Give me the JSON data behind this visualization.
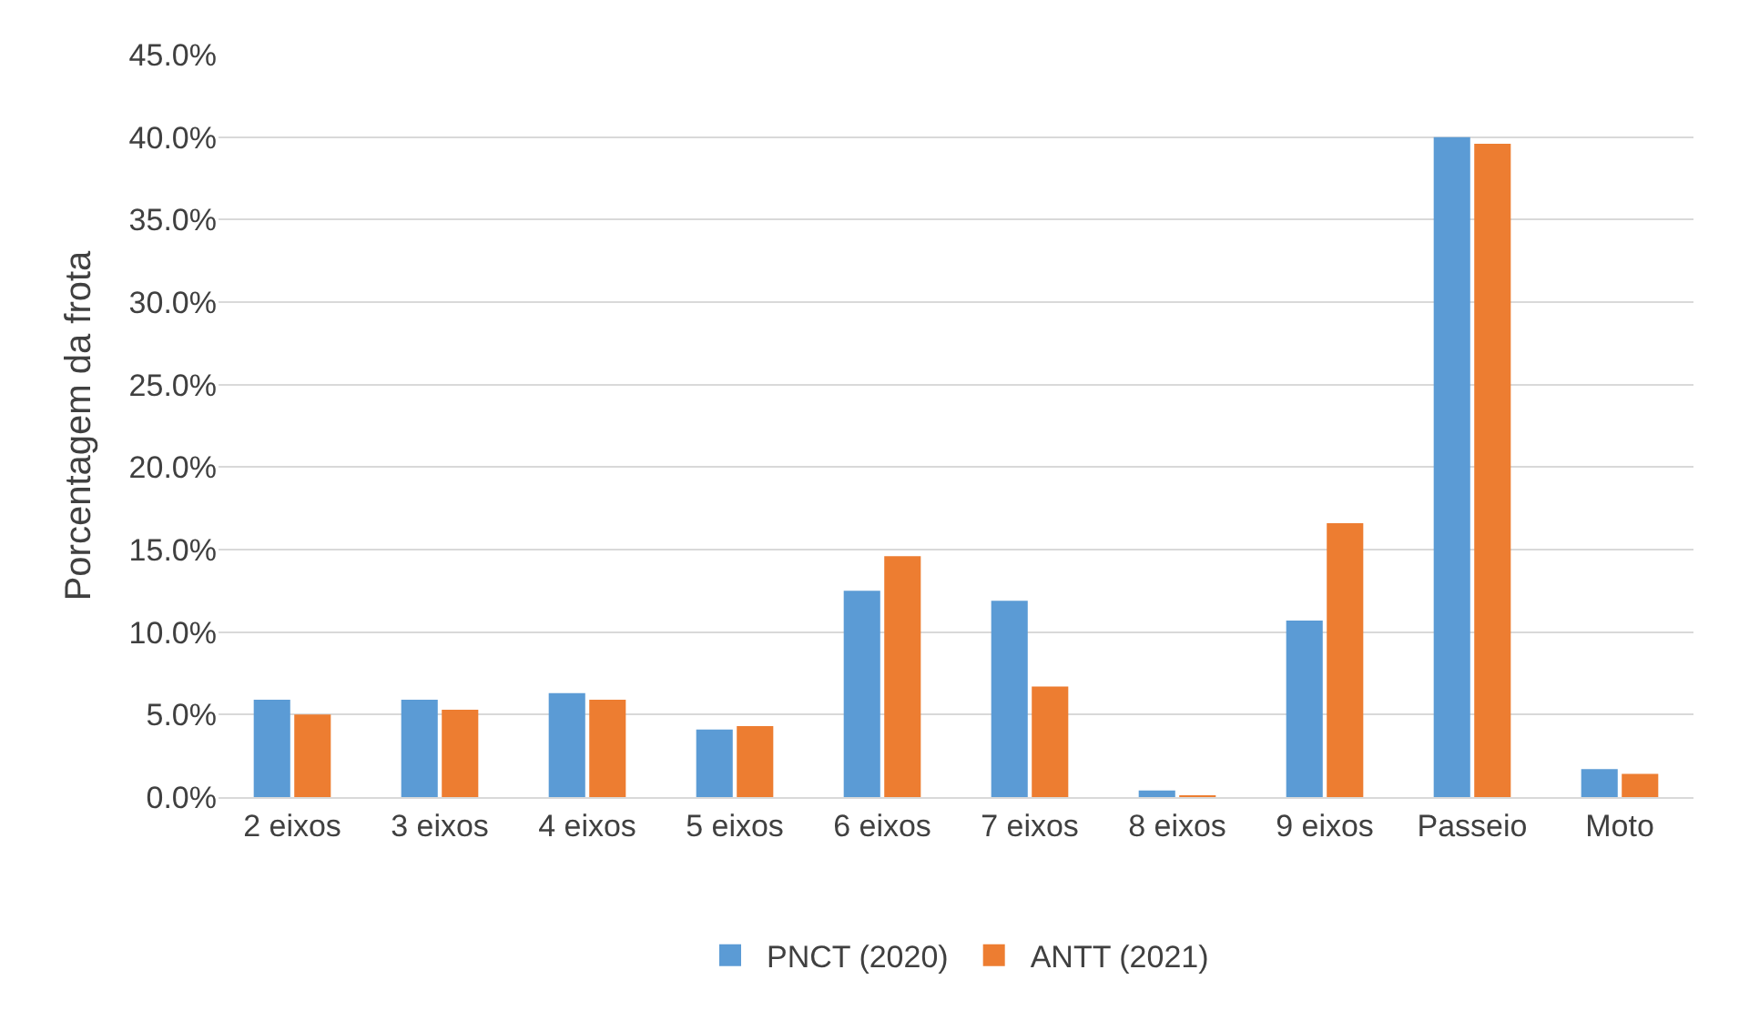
{
  "chart_data": {
    "type": "bar",
    "ylabel": "Porcentagem da frota",
    "categories": [
      "2 eixos",
      "3 eixos",
      "4 eixos",
      "5 eixos",
      "6 eixos",
      "7 eixos",
      "8 eixos",
      "9 eixos",
      "Passeio",
      "Moto"
    ],
    "series": [
      {
        "name": "PNCT (2020)",
        "color": "#5b9bd5",
        "values": [
          5.9,
          5.9,
          6.3,
          4.1,
          12.5,
          11.9,
          0.4,
          10.7,
          40.0,
          1.7
        ]
      },
      {
        "name": "ANTT (2021)",
        "color": "#ed7d31",
        "values": [
          5.0,
          5.3,
          5.9,
          4.3,
          14.6,
          6.7,
          0.1,
          16.6,
          39.6,
          1.4
        ]
      }
    ],
    "ylim": [
      0,
      45
    ],
    "yticks": [
      {
        "value": 0,
        "label": "0.0%"
      },
      {
        "value": 5,
        "label": "5.0%"
      },
      {
        "value": 10,
        "label": "10.0%"
      },
      {
        "value": 15,
        "label": "15.0%"
      },
      {
        "value": 20,
        "label": "20.0%"
      },
      {
        "value": 25,
        "label": "25.0%"
      },
      {
        "value": 30,
        "label": "30.0%"
      },
      {
        "value": 35,
        "label": "35.0%"
      },
      {
        "value": 40,
        "label": "40.0%"
      },
      {
        "value": 45,
        "label": "45.0%"
      }
    ],
    "grid": "y",
    "legend": "bottom"
  }
}
